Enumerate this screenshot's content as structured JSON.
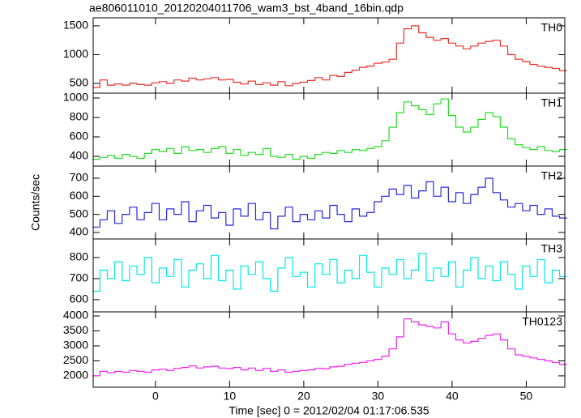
{
  "chart_data": {
    "type": "line",
    "title": "ae806011010_20120204011706_wam3_bst_4band_16bin.qdp",
    "ylabel": "Counts/sec",
    "xlabel": "Time [sec] 0 = 2012/02/04 01:17:06.535",
    "x": [
      -8,
      -7,
      -6,
      -5,
      -4,
      -3,
      -2,
      -1,
      0,
      1,
      2,
      3,
      4,
      5,
      6,
      7,
      8,
      9,
      10,
      11,
      12,
      13,
      14,
      15,
      16,
      17,
      18,
      19,
      20,
      21,
      22,
      23,
      24,
      25,
      26,
      27,
      28,
      29,
      30,
      31,
      32,
      33,
      34,
      35,
      36,
      37,
      38,
      39,
      40,
      41,
      42,
      43,
      44,
      45,
      46,
      47,
      48,
      49,
      50,
      51,
      52,
      53,
      54,
      55
    ],
    "xlim": [
      -8.4,
      55.2
    ],
    "xticks": [
      0,
      10,
      20,
      30,
      40,
      50
    ],
    "series": [
      {
        "name": "TH0",
        "color": "#e8302a",
        "ylim": [
          330,
          1640
        ],
        "yticks": [
          500,
          1000,
          1500
        ],
        "values": [
          430,
          560,
          470,
          490,
          470,
          500,
          480,
          470,
          510,
          530,
          500,
          560,
          540,
          590,
          560,
          580,
          600,
          560,
          570,
          520,
          490,
          540,
          480,
          510,
          470,
          530,
          460,
          500,
          520,
          550,
          600,
          560,
          640,
          620,
          690,
          730,
          780,
          800,
          850,
          870,
          920,
          1200,
          1450,
          1500,
          1380,
          1300,
          1250,
          1280,
          1200,
          1150,
          1100,
          1150,
          1200,
          1230,
          1250,
          1150,
          1000,
          920,
          880,
          830,
          800,
          780,
          760,
          720
        ]
      },
      {
        "name": "TH1",
        "color": "#22dd22",
        "ylim": [
          300,
          1050
        ],
        "yticks": [
          400,
          600,
          800,
          1000
        ],
        "values": [
          370,
          390,
          410,
          380,
          420,
          400,
          380,
          430,
          470,
          450,
          480,
          430,
          500,
          460,
          470,
          440,
          480,
          500,
          430,
          470,
          410,
          440,
          420,
          480,
          400,
          390,
          420,
          370,
          400,
          380,
          420,
          440,
          430,
          460,
          440,
          470,
          460,
          480,
          500,
          560,
          700,
          850,
          960,
          920,
          880,
          830,
          940,
          990,
          820,
          700,
          650,
          700,
          780,
          850,
          810,
          700,
          580,
          520,
          490,
          470,
          500,
          460,
          450,
          470
        ]
      },
      {
        "name": "TH2",
        "color": "#2828dd",
        "ylim": [
          364,
          767
        ],
        "yticks": [
          400,
          500,
          600,
          700
        ],
        "values": [
          430,
          470,
          520,
          450,
          500,
          540,
          470,
          510,
          560,
          470,
          530,
          500,
          570,
          460,
          520,
          550,
          480,
          510,
          440,
          530,
          490,
          560,
          470,
          510,
          420,
          490,
          540,
          460,
          500,
          470,
          520,
          480,
          550,
          500,
          460,
          530,
          490,
          510,
          570,
          600,
          640,
          610,
          660,
          590,
          630,
          680,
          600,
          650,
          570,
          620,
          560,
          610,
          650,
          700,
          620,
          580,
          540,
          560,
          520,
          550,
          500,
          530,
          490,
          480
        ]
      },
      {
        "name": "TH3",
        "color": "#00e8e8",
        "ylim": [
          542,
          888
        ],
        "yticks": [
          600,
          700,
          800
        ],
        "values": [
          640,
          740,
          700,
          780,
          690,
          760,
          720,
          800,
          680,
          750,
          710,
          790,
          660,
          740,
          770,
          700,
          810,
          690,
          740,
          650,
          760,
          720,
          780,
          700,
          640,
          750,
          800,
          710,
          730,
          660,
          770,
          720,
          790,
          680,
          740,
          700,
          810,
          730,
          660,
          750,
          720,
          790,
          700,
          740,
          820,
          690,
          750,
          710,
          780,
          660,
          740,
          800,
          700,
          760,
          690,
          780,
          720,
          650,
          760,
          710,
          790,
          680,
          740,
          710
        ]
      },
      {
        "name": "TH0123",
        "color": "#ee22ee",
        "ylim": [
          1620,
          4135
        ],
        "yticks": [
          2000,
          2500,
          3000,
          3500,
          4000
        ],
        "values": [
          2000,
          2150,
          2100,
          2150,
          2120,
          2180,
          2150,
          2120,
          2200,
          2220,
          2180,
          2250,
          2280,
          2330,
          2260,
          2300,
          2320,
          2260,
          2240,
          2280,
          2200,
          2260,
          2180,
          2250,
          2150,
          2200,
          2120,
          2150,
          2180,
          2200,
          2250,
          2230,
          2300,
          2320,
          2380,
          2420,
          2450,
          2500,
          2550,
          2650,
          2900,
          3300,
          3900,
          3800,
          3700,
          3650,
          3600,
          3800,
          3400,
          3200,
          3100,
          3150,
          3250,
          3350,
          3400,
          3200,
          2900,
          2700,
          2650,
          2600,
          2550,
          2500,
          2450,
          2380
        ]
      }
    ]
  }
}
